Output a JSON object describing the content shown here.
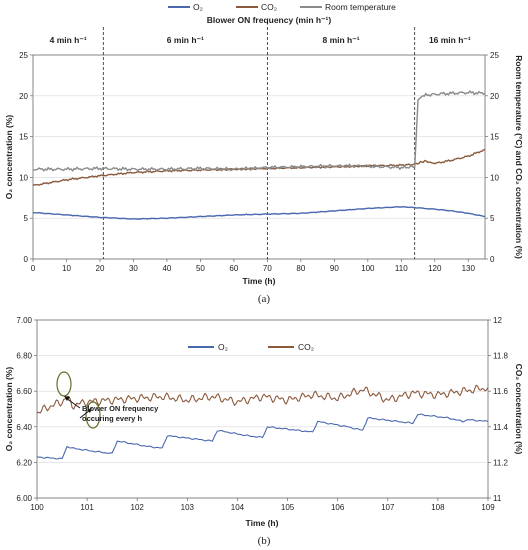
{
  "chart_data": [
    {
      "type": "line",
      "panel_label": "(a)",
      "title": "Blower ON frequency (min h⁻¹)",
      "xlabel": "Time (h)",
      "ylabel_left": "O₂ concentration (%)",
      "ylabel_right": "Room temperature (°C) and CO₂ concentration (%)",
      "xlim": [
        0,
        135
      ],
      "ylim_left": [
        0,
        25
      ],
      "ylim_right": [
        0,
        25
      ],
      "x_ticks": [
        "0",
        "10",
        "20",
        "30",
        "40",
        "50",
        "60",
        "70",
        "80",
        "90",
        "100",
        "110",
        "120",
        "130"
      ],
      "y_ticks_left": [
        "0",
        "5",
        "10",
        "15",
        "20",
        "25"
      ],
      "y_ticks_right": [
        "0",
        "5",
        "10",
        "15",
        "20",
        "25"
      ],
      "legend": {
        "placement": "top",
        "entries": [
          {
            "name": "O₂",
            "color": "#4a68b0"
          },
          {
            "name": "CO₂",
            "color": "#8b5a3c"
          },
          {
            "name": "Room temperature",
            "color": "#8a8a8a"
          }
        ]
      },
      "phases": [
        {
          "label": "4 min h⁻¹",
          "x_start": 0,
          "x_end": 21
        },
        {
          "label": "6 min h⁻¹",
          "x_start": 21,
          "x_end": 70
        },
        {
          "label": "8 min h⁻¹",
          "x_start": 70,
          "x_end": 114
        },
        {
          "label": "16 min h⁻¹",
          "x_start": 114,
          "x_end": 135
        }
      ],
      "dividers_x": [
        21,
        70,
        114
      ],
      "series": [
        {
          "name": "O₂",
          "axis": "left",
          "color": "#4a68b0",
          "x": [
            0,
            10,
            20,
            30,
            40,
            50,
            60,
            70,
            80,
            90,
            100,
            110,
            114,
            120,
            125,
            130,
            135
          ],
          "y": [
            5.7,
            5.4,
            5.1,
            4.9,
            5.0,
            5.2,
            5.4,
            5.5,
            5.6,
            5.9,
            6.2,
            6.4,
            6.3,
            6.1,
            5.9,
            5.6,
            5.2
          ]
        },
        {
          "name": "CO₂",
          "axis": "right",
          "color": "#8b5a3c",
          "x": [
            0,
            10,
            20,
            30,
            40,
            50,
            60,
            70,
            80,
            90,
            100,
            110,
            114,
            117,
            120,
            125,
            130,
            135
          ],
          "y": [
            9.0,
            9.7,
            10.2,
            10.6,
            10.8,
            10.9,
            11.0,
            11.1,
            11.2,
            11.3,
            11.4,
            11.5,
            11.6,
            12.0,
            11.7,
            12.1,
            12.6,
            13.4
          ]
        },
        {
          "name": "Room temperature",
          "axis": "right",
          "color": "#8a8a8a",
          "x": [
            0,
            10,
            20,
            30,
            40,
            50,
            60,
            70,
            80,
            90,
            100,
            110,
            114,
            115,
            116,
            120,
            125,
            130,
            135
          ],
          "y": [
            11.0,
            11.0,
            11.1,
            11.0,
            11.0,
            11.1,
            11.0,
            11.2,
            11.3,
            11.4,
            11.4,
            11.2,
            11.3,
            19.5,
            20.0,
            20.2,
            20.3,
            20.4,
            20.3
          ]
        }
      ]
    },
    {
      "type": "line",
      "panel_label": "(b)",
      "xlabel": "Time (h)",
      "ylabel_left": "O₂ concentration (%)",
      "ylabel_right": "CO₂ concentration (%)",
      "xlim": [
        100,
        109
      ],
      "ylim_left": [
        6.0,
        7.0
      ],
      "ylim_right": [
        11.0,
        12.0
      ],
      "x_ticks": [
        "100",
        "101",
        "102",
        "103",
        "104",
        "105",
        "106",
        "107",
        "108",
        "109"
      ],
      "y_ticks_left": [
        "6.00",
        "6.20",
        "6.40",
        "6.60",
        "6.80",
        "7.00"
      ],
      "y_ticks_right": [
        "11",
        "11.2",
        "11.4",
        "11.6",
        "11.8",
        "12"
      ],
      "legend": {
        "placement": "top-center",
        "entries": [
          {
            "name": "O₂",
            "color": "#4a68b0"
          },
          {
            "name": "CO₂",
            "color": "#8b5a3c"
          }
        ]
      },
      "annotation": {
        "text_line1": "Blower ON frequency",
        "text_line2": "occuring every h",
        "x": 100.6,
        "y_left": 6.32
      },
      "series": [
        {
          "name": "O₂",
          "axis": "left",
          "color": "#4a68b0",
          "x": [
            100.0,
            100.5,
            100.6,
            100.7,
            101.2,
            101.5,
            101.6,
            102.2,
            102.5,
            102.6,
            103.2,
            103.5,
            103.6,
            104.2,
            104.5,
            104.6,
            105.2,
            105.5,
            105.6,
            106.2,
            106.5,
            106.6,
            107.2,
            107.5,
            107.6,
            108.2,
            108.5,
            108.6,
            109.0
          ],
          "y": [
            6.23,
            6.22,
            6.29,
            6.28,
            6.26,
            6.25,
            6.32,
            6.29,
            6.28,
            6.35,
            6.33,
            6.32,
            6.38,
            6.35,
            6.34,
            6.4,
            6.38,
            6.37,
            6.43,
            6.4,
            6.38,
            6.45,
            6.43,
            6.42,
            6.47,
            6.45,
            6.43,
            6.44,
            6.43
          ]
        },
        {
          "name": "CO₂",
          "axis": "right",
          "color": "#8b5a3c",
          "x": [
            100.0,
            100.3,
            100.5,
            100.6,
            100.7,
            101.0,
            101.5,
            102.0,
            102.5,
            103.0,
            103.5,
            104.0,
            104.5,
            105.0,
            105.5,
            106.0,
            106.5,
            107.0,
            107.5,
            108.0,
            108.5,
            109.0
          ],
          "y": [
            11.48,
            11.52,
            11.54,
            11.57,
            11.52,
            11.54,
            11.55,
            11.56,
            11.57,
            11.55,
            11.57,
            11.54,
            11.57,
            11.55,
            11.58,
            11.56,
            11.61,
            11.55,
            11.59,
            11.58,
            11.6,
            11.62
          ]
        }
      ]
    }
  ]
}
